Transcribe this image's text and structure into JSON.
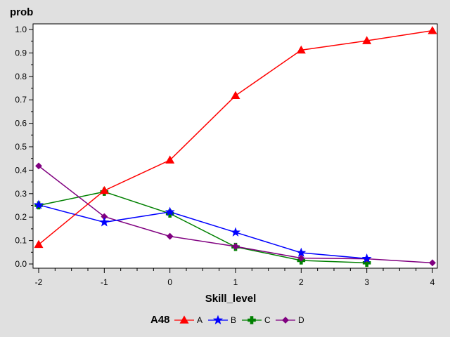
{
  "chart_data": {
    "type": "line",
    "title": "",
    "xlabel": "Skill_level",
    "ylabel": "prob",
    "x": [
      -2,
      -1,
      0,
      1,
      2,
      3,
      4
    ],
    "xlim": [
      -2,
      4
    ],
    "ylim": [
      0,
      1
    ],
    "xticks": [
      "-2",
      "-1",
      "0",
      "1",
      "2",
      "3",
      "4"
    ],
    "yticks": [
      "0.0",
      "0.1",
      "0.2",
      "0.3",
      "0.4",
      "0.5",
      "0.6",
      "0.7",
      "0.8",
      "0.9",
      "1.0"
    ],
    "grid": false,
    "legend_title": "A48",
    "legend_position": "bottom",
    "series": [
      {
        "name": "A",
        "color": "#ff0000",
        "marker": "triangle",
        "values": [
          0.083,
          0.313,
          0.443,
          0.718,
          0.912,
          0.952,
          0.995
        ]
      },
      {
        "name": "B",
        "color": "#0000ff",
        "marker": "star",
        "values": [
          0.252,
          0.178,
          0.222,
          0.135,
          0.048,
          0.023,
          null
        ]
      },
      {
        "name": "C",
        "color": "#008000",
        "marker": "plus",
        "values": [
          0.25,
          0.308,
          0.215,
          0.073,
          0.015,
          0.005,
          null
        ]
      },
      {
        "name": "D",
        "color": "#800080",
        "marker": "diamond",
        "values": [
          0.418,
          0.202,
          0.118,
          0.075,
          0.025,
          0.022,
          0.005
        ]
      }
    ]
  }
}
